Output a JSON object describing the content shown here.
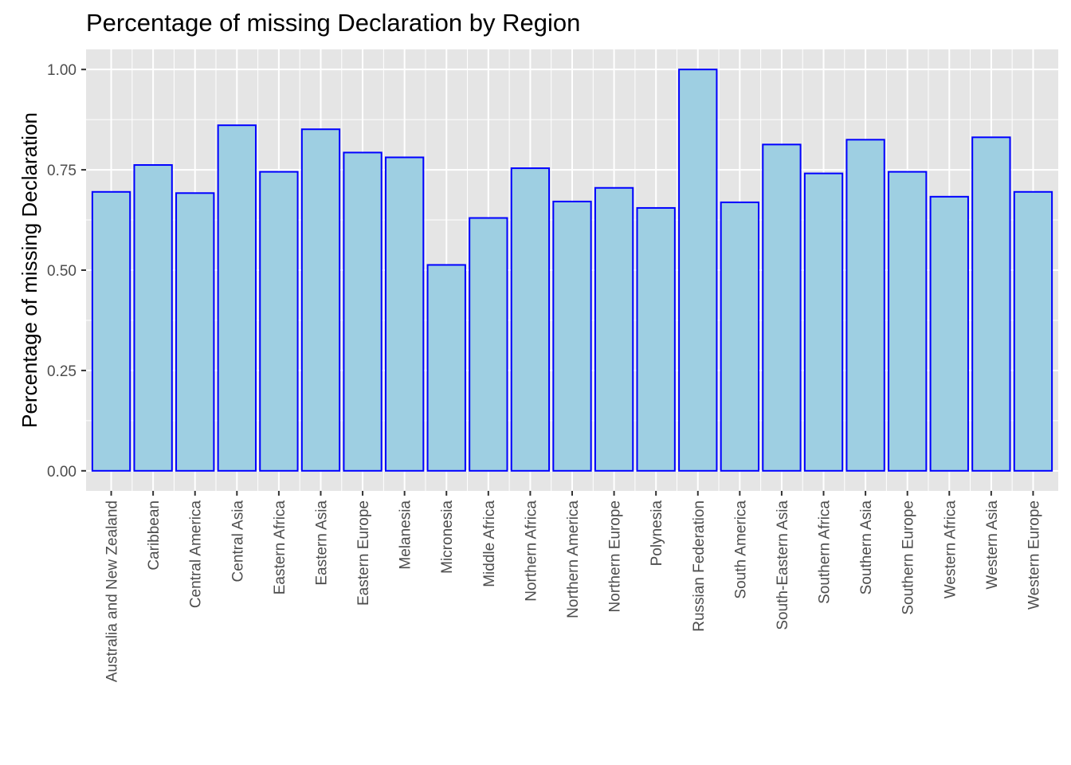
{
  "chart_data": {
    "type": "bar",
    "title": "Percentage of missing Declaration by Region",
    "xlabel": "",
    "ylabel": "Percentage of missing Declaration",
    "ylim": [
      -0.05,
      1.05
    ],
    "yticks": [
      "0.00",
      "0.25",
      "0.50",
      "0.75",
      "1.00"
    ],
    "grid": true,
    "colors": {
      "panel": "#e5e5e5",
      "bar_fill": "#9ecfe2",
      "bar_stroke": "#0000ff",
      "grid": "#ffffff"
    },
    "categories": [
      "Australia and New Zealand",
      "Caribbean",
      "Central America",
      "Central Asia",
      "Eastern Africa",
      "Eastern Asia",
      "Eastern Europe",
      "Melanesia",
      "Micronesia",
      "Middle Africa",
      "Northern Africa",
      "Northern America",
      "Northern Europe",
      "Polynesia",
      "Russian Federation",
      "South America",
      "South-Eastern Asia",
      "Southern Africa",
      "Southern Asia",
      "Southern Europe",
      "Western Africa",
      "Western Asia",
      "Western Europe"
    ],
    "values": [
      0.695,
      0.762,
      0.692,
      0.861,
      0.745,
      0.851,
      0.793,
      0.781,
      0.513,
      0.63,
      0.754,
      0.671,
      0.705,
      0.655,
      1.0,
      0.669,
      0.813,
      0.741,
      0.825,
      0.745,
      0.683,
      0.831,
      0.695
    ]
  }
}
